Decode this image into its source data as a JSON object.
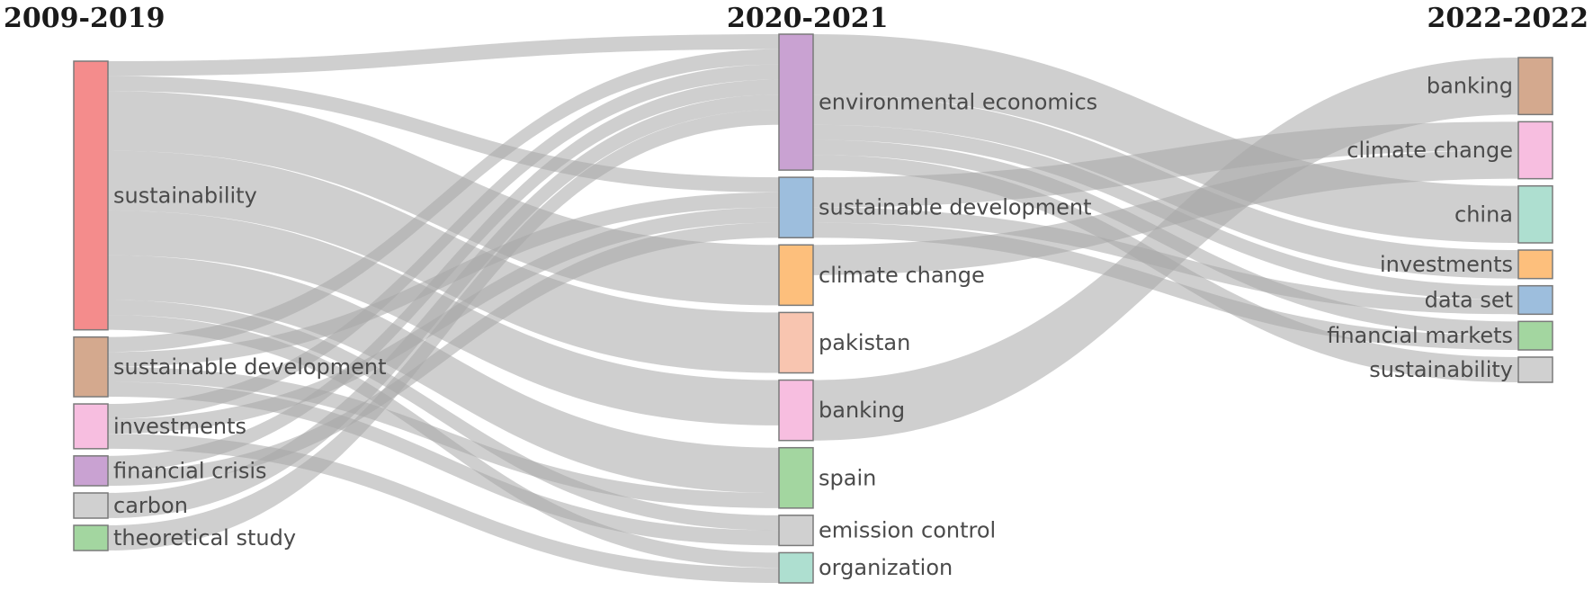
{
  "chart_data": {
    "type": "sankey",
    "columns": [
      {
        "title": "2009-2019",
        "nodes": [
          {
            "id": "a_sustainability",
            "label": "sustainability",
            "color": "#F48C8C"
          },
          {
            "id": "a_sustdev",
            "label": "sustainable development",
            "color": "#D4A98E"
          },
          {
            "id": "a_investments",
            "label": "investments",
            "color": "#F7BEE0"
          },
          {
            "id": "a_fincrisis",
            "label": "financial crisis",
            "color": "#C9A2D2"
          },
          {
            "id": "a_carbon",
            "label": "carbon",
            "color": "#D0D0D0"
          },
          {
            "id": "a_theoretical",
            "label": "theoretical study",
            "color": "#A3D6A0"
          }
        ]
      },
      {
        "title": "2020-2021",
        "nodes": [
          {
            "id": "b_enveco",
            "label": "environmental economics",
            "color": "#C9A2D2"
          },
          {
            "id": "b_sustdev",
            "label": "sustainable development",
            "color": "#9DBEDD"
          },
          {
            "id": "b_climate",
            "label": "climate change",
            "color": "#FDBF7C"
          },
          {
            "id": "b_pakistan",
            "label": "pakistan",
            "color": "#F8C5B0"
          },
          {
            "id": "b_banking",
            "label": "banking",
            "color": "#F7BEE0"
          },
          {
            "id": "b_spain",
            "label": "spain",
            "color": "#A3D6A0"
          },
          {
            "id": "b_emission",
            "label": "emission control",
            "color": "#D0D0D0"
          },
          {
            "id": "b_organization",
            "label": "organization",
            "color": "#AEDFD0"
          }
        ]
      },
      {
        "title": "2022-2022",
        "nodes": [
          {
            "id": "c_banking",
            "label": "banking",
            "color": "#D4A98E"
          },
          {
            "id": "c_climate",
            "label": "climate change",
            "color": "#F7BEE0"
          },
          {
            "id": "c_china",
            "label": "china",
            "color": "#AEDFD0"
          },
          {
            "id": "c_investments",
            "label": "investments",
            "color": "#FDBF7C"
          },
          {
            "id": "c_dataset",
            "label": "data set",
            "color": "#9DBEDD"
          },
          {
            "id": "c_finmarkets",
            "label": "financial markets",
            "color": "#A3D6A0"
          },
          {
            "id": "c_sustainability",
            "label": "sustainability",
            "color": "#D0D0D0"
          }
        ]
      }
    ],
    "flows": [
      {
        "source": "a_sustainability",
        "target": "b_enveco",
        "value": 1
      },
      {
        "source": "a_sustainability",
        "target": "b_sustdev",
        "value": 1
      },
      {
        "source": "a_sustainability",
        "target": "b_climate",
        "value": 4
      },
      {
        "source": "a_sustainability",
        "target": "b_pakistan",
        "value": 4
      },
      {
        "source": "a_sustainability",
        "target": "b_banking",
        "value": 3
      },
      {
        "source": "a_sustainability",
        "target": "b_spain",
        "value": 3
      },
      {
        "source": "a_sustainability",
        "target": "b_emission",
        "value": 1
      },
      {
        "source": "a_sustainability",
        "target": "b_organization",
        "value": 1
      },
      {
        "source": "a_sustdev",
        "target": "b_enveco",
        "value": 1
      },
      {
        "source": "a_sustdev",
        "target": "b_sustdev",
        "value": 1
      },
      {
        "source": "a_sustdev",
        "target": "b_spain",
        "value": 1
      },
      {
        "source": "a_sustdev",
        "target": "b_emission",
        "value": 1
      },
      {
        "source": "a_investments",
        "target": "b_enveco",
        "value": 1
      },
      {
        "source": "a_investments",
        "target": "b_sustdev",
        "value": 1
      },
      {
        "source": "a_investments",
        "target": "b_organization",
        "value": 1
      },
      {
        "source": "a_fincrisis",
        "target": "b_enveco",
        "value": 1
      },
      {
        "source": "a_fincrisis",
        "target": "b_sustdev",
        "value": 1
      },
      {
        "source": "a_carbon",
        "target": "b_enveco",
        "value": 1
      },
      {
        "source": "a_theoretical",
        "target": "b_enveco",
        "value": 1
      },
      {
        "source": "b_enveco",
        "target": "c_china",
        "value": 4
      },
      {
        "source": "b_enveco",
        "target": "c_investments",
        "value": 2
      },
      {
        "source": "b_enveco",
        "target": "c_dataset",
        "value": 1
      },
      {
        "source": "b_enveco",
        "target": "c_finmarkets",
        "value": 1
      },
      {
        "source": "b_enveco",
        "target": "c_sustainability",
        "value": 1
      },
      {
        "source": "b_sustdev",
        "target": "c_climate",
        "value": 2
      },
      {
        "source": "b_sustdev",
        "target": "c_finmarkets",
        "value": 1
      },
      {
        "source": "b_sustdev",
        "target": "c_dataset",
        "value": 1
      },
      {
        "source": "b_climate",
        "target": "c_climate",
        "value": 2
      },
      {
        "source": "b_banking",
        "target": "c_banking",
        "value": 4
      }
    ],
    "grid": false,
    "legend": "none"
  }
}
